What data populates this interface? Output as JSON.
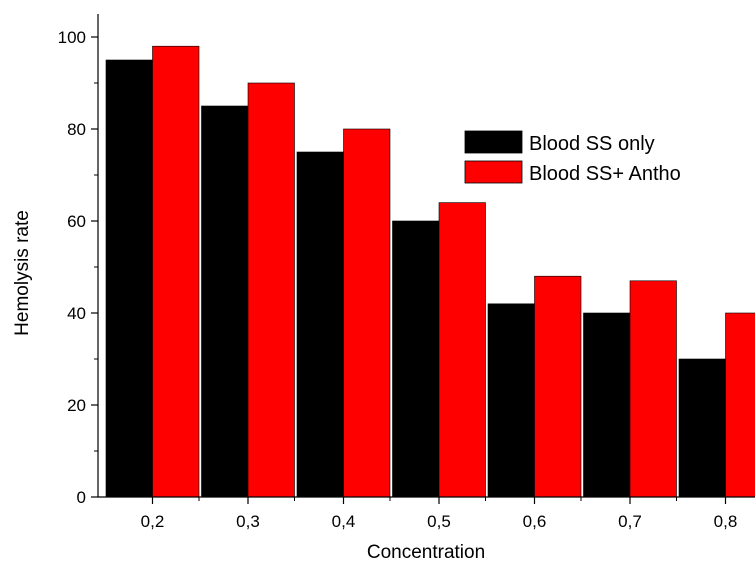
{
  "chart_data": {
    "type": "bar",
    "title": "",
    "xlabel": "Concentration",
    "ylabel": "Hemolysis rate",
    "categories": [
      "0,2",
      "0,3",
      "0,4",
      "0,5",
      "0,6",
      "0,7",
      "0,8"
    ],
    "series": [
      {
        "name": "Blood SS only",
        "color": "#000000",
        "values": [
          95,
          85,
          75,
          60,
          42,
          40,
          30
        ]
      },
      {
        "name": "Blood SS+ Antho",
        "color": "#ff0000",
        "values": [
          98,
          90,
          80,
          64,
          48,
          47,
          40
        ]
      }
    ],
    "ylim": [
      0,
      105
    ],
    "yticks": [
      0,
      20,
      40,
      60,
      80,
      100
    ],
    "yticks_labels": [
      "0",
      "20",
      "40",
      "60",
      "80",
      "100"
    ],
    "grid": false,
    "legend_position": "top-right"
  }
}
